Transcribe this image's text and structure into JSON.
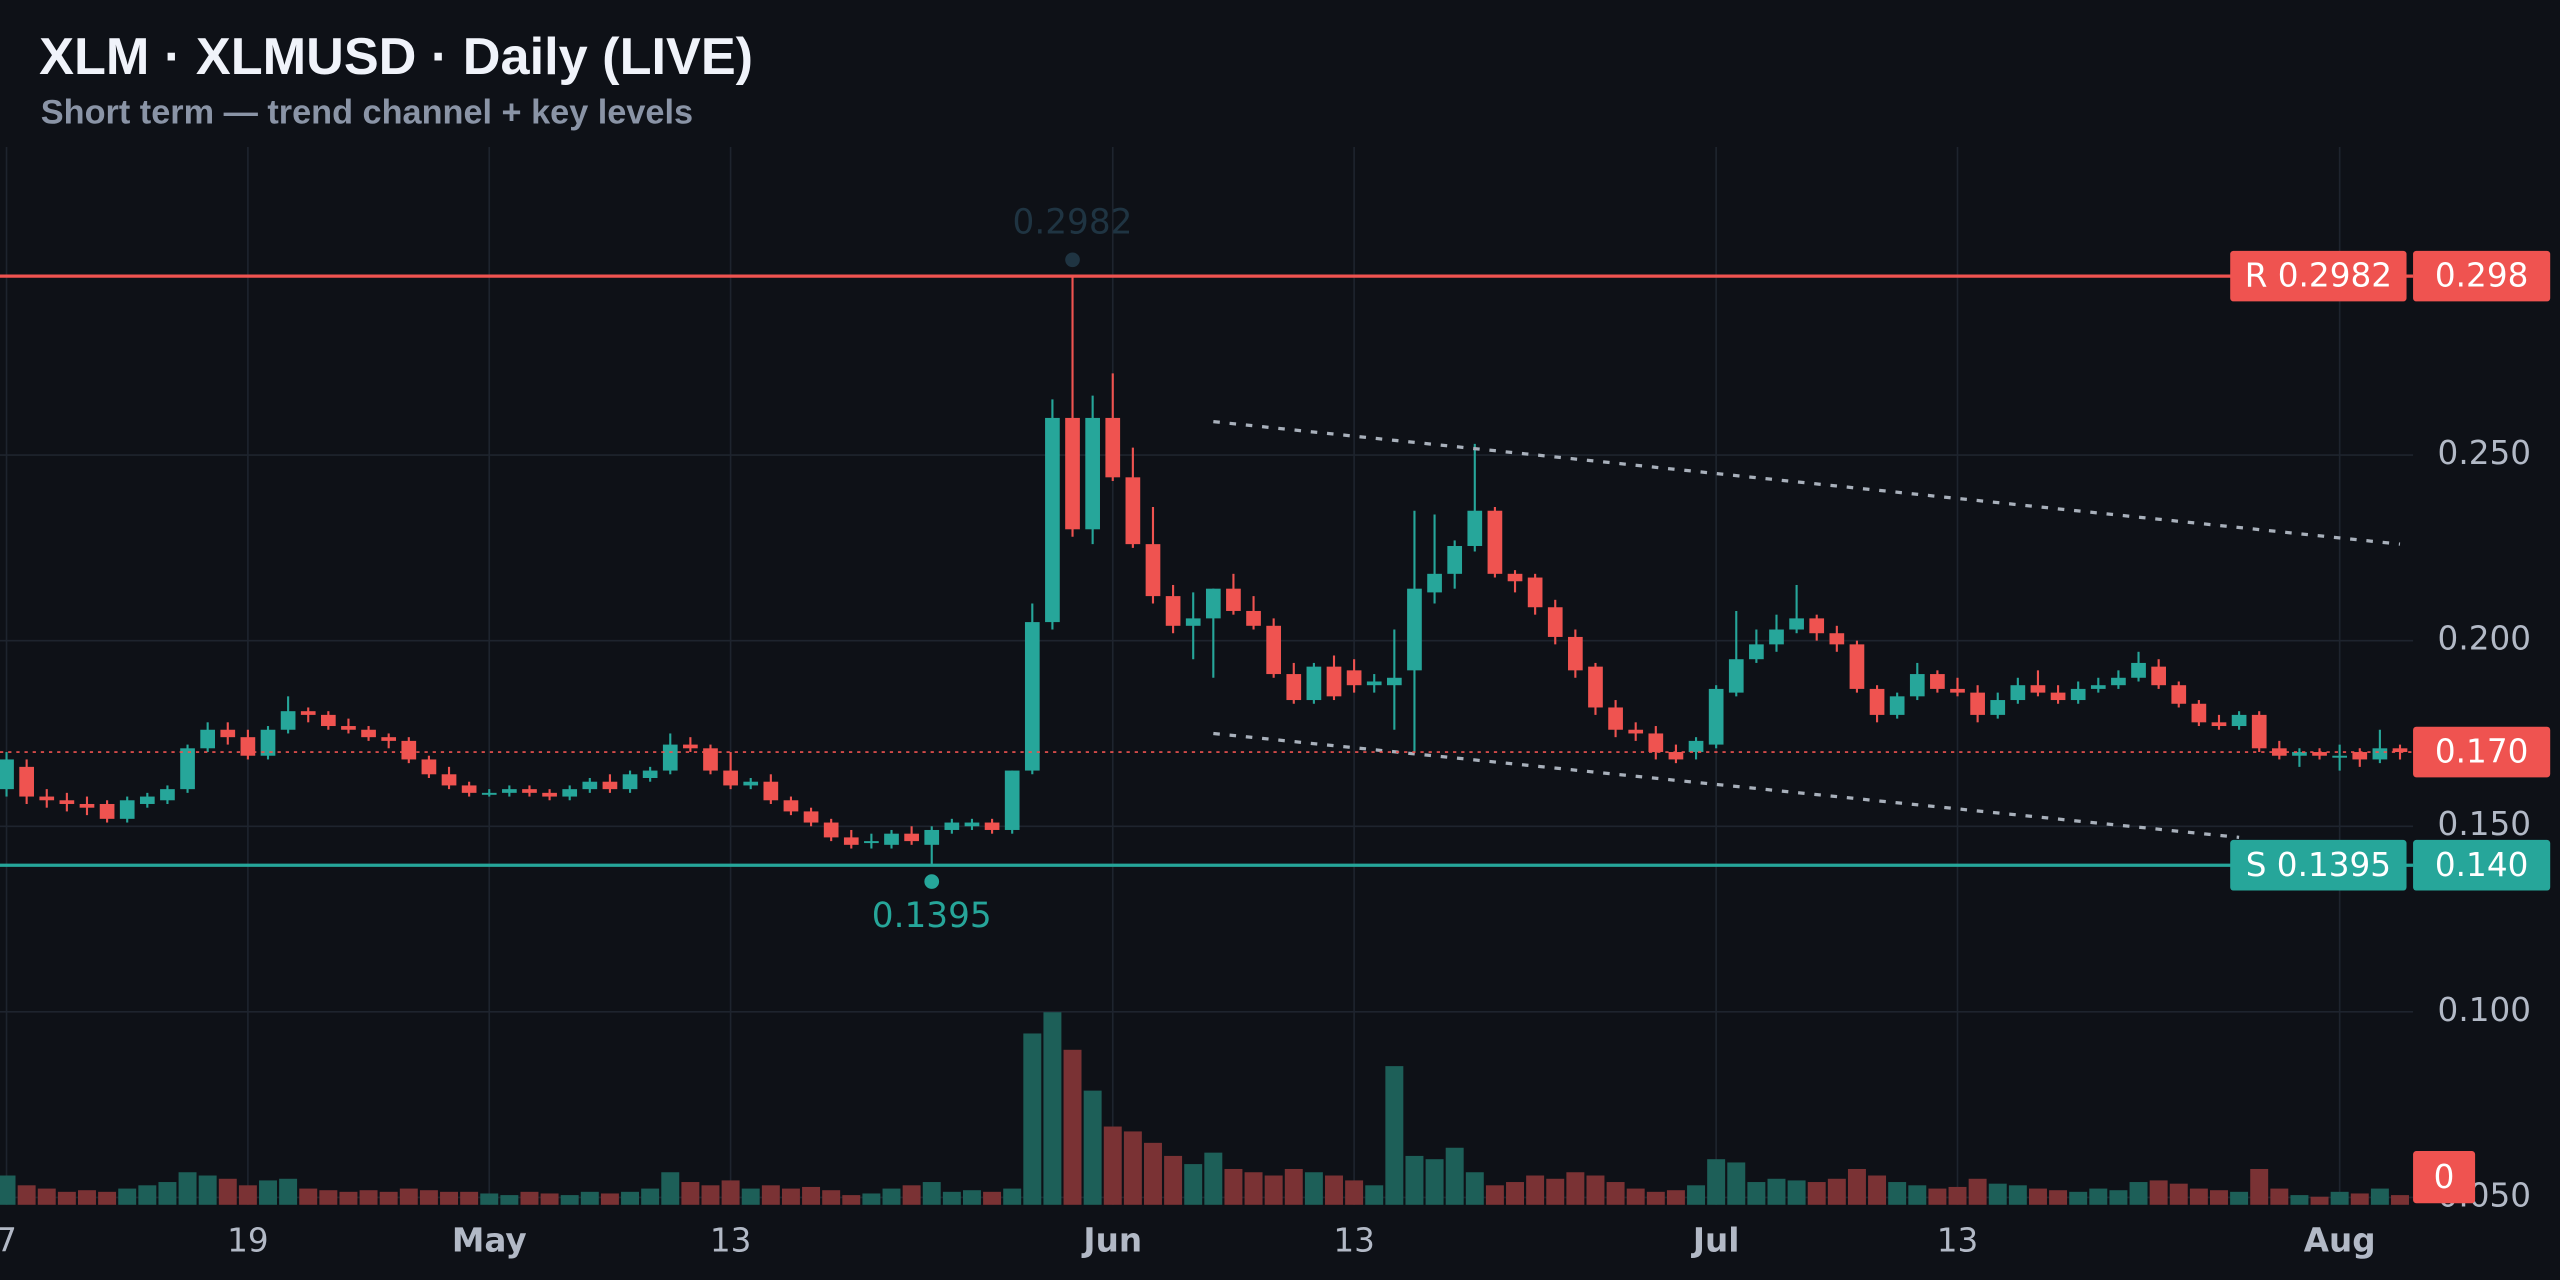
{
  "chart_data": {
    "type": "candlestick",
    "title": "XLM · XLMUSD · Daily (LIVE)",
    "subtitle": "Short term — trend channel + key levels",
    "up_color": "#26a69a",
    "down_color": "#ef5350",
    "x": [
      "04-07",
      "04-08",
      "04-09",
      "04-10",
      "04-11",
      "04-12",
      "04-13",
      "04-14",
      "04-15",
      "04-16",
      "04-17",
      "04-18",
      "04-19",
      "04-20",
      "04-21",
      "04-22",
      "04-23",
      "04-24",
      "04-25",
      "04-26",
      "04-27",
      "04-28",
      "04-29",
      "04-30",
      "05-01",
      "05-02",
      "05-03",
      "05-04",
      "05-05",
      "05-06",
      "05-07",
      "05-08",
      "05-09",
      "05-10",
      "05-11",
      "05-12",
      "05-13",
      "05-14",
      "05-15",
      "05-16",
      "05-17",
      "05-18",
      "05-19",
      "05-20",
      "05-21",
      "05-22",
      "05-23",
      "05-24",
      "05-25",
      "05-26",
      "05-27",
      "05-28",
      "05-29",
      "05-30",
      "05-31",
      "06-01",
      "06-02",
      "06-03",
      "06-04",
      "06-05",
      "06-06",
      "06-07",
      "06-08",
      "06-09",
      "06-10",
      "06-11",
      "06-12",
      "06-13",
      "06-14",
      "06-15",
      "06-16",
      "06-17",
      "06-18",
      "06-19",
      "06-20",
      "06-21",
      "06-22",
      "06-23",
      "06-24",
      "06-25",
      "06-26",
      "06-27",
      "06-28",
      "06-29",
      "06-30",
      "07-01",
      "07-02",
      "07-03",
      "07-04",
      "07-05",
      "07-06",
      "07-07",
      "07-08",
      "07-09",
      "07-10",
      "07-11",
      "07-12",
      "07-13",
      "07-14",
      "07-15",
      "07-16",
      "07-17",
      "07-18",
      "07-19",
      "07-20",
      "07-21",
      "07-22",
      "07-23",
      "07-24",
      "07-25",
      "07-26",
      "07-27",
      "07-28",
      "07-29",
      "07-30",
      "07-31",
      "08-01",
      "08-02",
      "08-03",
      "08-04"
    ],
    "open": [
      0.16,
      0.166,
      0.158,
      0.157,
      0.156,
      0.156,
      0.152,
      0.156,
      0.157,
      0.16,
      0.171,
      0.176,
      0.174,
      0.169,
      0.176,
      0.181,
      0.18,
      0.177,
      0.176,
      0.174,
      0.173,
      0.168,
      0.164,
      0.161,
      0.159,
      0.159,
      0.16,
      0.159,
      0.158,
      0.16,
      0.162,
      0.16,
      0.163,
      0.165,
      0.172,
      0.171,
      0.165,
      0.161,
      0.162,
      0.157,
      0.154,
      0.151,
      0.147,
      0.146,
      0.145,
      0.148,
      0.145,
      0.149,
      0.15,
      0.151,
      0.149,
      0.165,
      0.205,
      0.26,
      0.23,
      0.26,
      0.244,
      0.226,
      0.212,
      0.204,
      0.206,
      0.214,
      0.208,
      0.204,
      0.191,
      0.184,
      0.193,
      0.192,
      0.188,
      0.188,
      0.192,
      0.213,
      0.218,
      0.2255,
      0.235,
      0.218,
      0.217,
      0.209,
      0.201,
      0.193,
      0.182,
      0.176,
      0.175,
      0.17,
      0.17,
      0.172,
      0.186,
      0.195,
      0.199,
      0.203,
      0.206,
      0.202,
      0.199,
      0.187,
      0.18,
      0.185,
      0.191,
      0.187,
      0.186,
      0.18,
      0.184,
      0.188,
      0.186,
      0.184,
      0.187,
      0.188,
      0.19,
      0.193,
      0.188,
      0.183,
      0.178,
      0.177,
      0.18,
      0.171,
      0.169,
      0.17,
      0.169,
      0.17,
      0.168,
      0.171
    ],
    "high": [
      0.17,
      0.168,
      0.16,
      0.159,
      0.158,
      0.157,
      0.158,
      0.159,
      0.161,
      0.172,
      0.178,
      0.178,
      0.176,
      0.177,
      0.185,
      0.182,
      0.181,
      0.179,
      0.177,
      0.175,
      0.174,
      0.169,
      0.166,
      0.162,
      0.16,
      0.161,
      0.161,
      0.16,
      0.161,
      0.163,
      0.164,
      0.165,
      0.166,
      0.175,
      0.174,
      0.172,
      0.17,
      0.163,
      0.164,
      0.158,
      0.155,
      0.152,
      0.149,
      0.148,
      0.149,
      0.15,
      0.15,
      0.152,
      0.152,
      0.152,
      0.165,
      0.21,
      0.265,
      0.2982,
      0.266,
      0.272,
      0.252,
      0.236,
      0.215,
      0.213,
      0.214,
      0.218,
      0.212,
      0.206,
      0.194,
      0.194,
      0.196,
      0.195,
      0.191,
      0.203,
      0.235,
      0.234,
      0.227,
      0.253,
      0.236,
      0.219,
      0.218,
      0.211,
      0.203,
      0.194,
      0.184,
      0.178,
      0.177,
      0.172,
      0.174,
      0.188,
      0.208,
      0.203,
      0.207,
      0.215,
      0.207,
      0.204,
      0.2,
      0.188,
      0.186,
      0.194,
      0.192,
      0.19,
      0.188,
      0.186,
      0.19,
      0.192,
      0.188,
      0.189,
      0.19,
      0.192,
      0.197,
      0.195,
      0.189,
      0.184,
      0.18,
      0.181,
      0.181,
      0.173,
      0.171,
      0.171,
      0.172,
      0.171,
      0.176,
      0.172
    ],
    "low": [
      0.158,
      0.156,
      0.155,
      0.154,
      0.153,
      0.151,
      0.151,
      0.155,
      0.156,
      0.159,
      0.17,
      0.172,
      0.168,
      0.168,
      0.175,
      0.178,
      0.176,
      0.175,
      0.173,
      0.171,
      0.167,
      0.163,
      0.16,
      0.158,
      0.158,
      0.158,
      0.158,
      0.157,
      0.157,
      0.159,
      0.159,
      0.159,
      0.162,
      0.164,
      0.17,
      0.164,
      0.16,
      0.16,
      0.156,
      0.153,
      0.15,
      0.146,
      0.144,
      0.144,
      0.144,
      0.145,
      0.1395,
      0.148,
      0.149,
      0.148,
      0.148,
      0.164,
      0.203,
      0.228,
      0.226,
      0.243,
      0.225,
      0.21,
      0.202,
      0.195,
      0.19,
      0.207,
      0.203,
      0.19,
      0.183,
      0.183,
      0.184,
      0.186,
      0.186,
      0.176,
      0.17,
      0.21,
      0.214,
      0.224,
      0.217,
      0.213,
      0.207,
      0.199,
      0.19,
      0.18,
      0.174,
      0.173,
      0.168,
      0.167,
      0.168,
      0.171,
      0.185,
      0.194,
      0.197,
      0.202,
      0.2,
      0.197,
      0.186,
      0.178,
      0.179,
      0.184,
      0.186,
      0.185,
      0.178,
      0.179,
      0.183,
      0.185,
      0.183,
      0.183,
      0.186,
      0.187,
      0.189,
      0.187,
      0.182,
      0.177,
      0.176,
      0.176,
      0.17,
      0.168,
      0.166,
      0.168,
      0.165,
      0.166,
      0.167,
      0.168
    ],
    "close": [
      0.168,
      0.158,
      0.157,
      0.156,
      0.155,
      0.152,
      0.157,
      0.158,
      0.16,
      0.171,
      0.176,
      0.174,
      0.169,
      0.176,
      0.181,
      0.18,
      0.177,
      0.176,
      0.174,
      0.173,
      0.168,
      0.164,
      0.161,
      0.159,
      0.159,
      0.16,
      0.159,
      0.158,
      0.16,
      0.162,
      0.16,
      0.164,
      0.165,
      0.172,
      0.171,
      0.165,
      0.161,
      0.162,
      0.157,
      0.154,
      0.151,
      0.147,
      0.145,
      0.146,
      0.148,
      0.146,
      0.149,
      0.151,
      0.151,
      0.149,
      0.165,
      0.205,
      0.26,
      0.23,
      0.26,
      0.244,
      0.226,
      0.212,
      0.204,
      0.206,
      0.214,
      0.208,
      0.204,
      0.191,
      0.184,
      0.193,
      0.185,
      0.188,
      0.189,
      0.19,
      0.214,
      0.218,
      0.2255,
      0.235,
      0.218,
      0.216,
      0.209,
      0.201,
      0.192,
      0.182,
      0.176,
      0.175,
      0.17,
      0.168,
      0.173,
      0.187,
      0.195,
      0.199,
      0.203,
      0.206,
      0.202,
      0.199,
      0.187,
      0.18,
      0.185,
      0.191,
      0.187,
      0.186,
      0.18,
      0.184,
      0.188,
      0.186,
      0.184,
      0.187,
      0.188,
      0.19,
      0.194,
      0.188,
      0.183,
      0.178,
      0.177,
      0.18,
      0.171,
      0.169,
      0.17,
      0.169,
      0.169,
      0.168,
      0.171,
      0.17
    ],
    "volume": [
      18,
      12,
      10,
      8,
      9,
      8,
      10,
      12,
      14,
      20,
      18,
      16,
      12,
      15,
      16,
      10,
      9,
      8,
      9,
      8,
      10,
      9,
      8,
      8,
      7,
      6,
      8,
      7,
      6,
      8,
      7,
      8,
      10,
      20,
      14,
      12,
      15,
      10,
      12,
      10,
      11,
      9,
      6,
      7,
      10,
      12,
      14,
      8,
      9,
      8,
      10,
      105,
      118,
      95,
      70,
      48,
      45,
      38,
      30,
      25,
      32,
      22,
      20,
      18,
      22,
      20,
      18,
      15,
      12,
      85,
      30,
      28,
      35,
      20,
      12,
      14,
      18,
      16,
      20,
      18,
      14,
      10,
      8,
      9,
      12,
      28,
      26,
      14,
      16,
      15,
      14,
      16,
      22,
      18,
      14,
      12,
      10,
      11,
      16,
      13,
      12,
      10,
      9,
      8,
      10,
      9,
      14,
      15,
      13,
      10,
      9,
      8,
      22,
      10,
      6,
      5,
      8,
      7,
      10,
      6
    ],
    "volume_up_color": "#1d5f58",
    "volume_down_color": "#7a3234",
    "volume_label": "0",
    "ylim": [
      0.048,
      0.333
    ],
    "yticks": [
      {
        "value": 0.05,
        "label": "0.050"
      },
      {
        "value": 0.1,
        "label": "0.100"
      },
      {
        "value": 0.15,
        "label": "0.150"
      },
      {
        "value": 0.2,
        "label": "0.200"
      },
      {
        "value": 0.25,
        "label": "0.250"
      }
    ],
    "xticks": [
      {
        "value": "04-07",
        "label": "7"
      },
      {
        "value": "04-19",
        "label": "19"
      },
      {
        "value": "05-01",
        "label": "May"
      },
      {
        "value": "05-13",
        "label": "13"
      },
      {
        "value": "06-01",
        "label": "Jun"
      },
      {
        "value": "06-13",
        "label": "13"
      },
      {
        "value": "07-01",
        "label": "Jul"
      },
      {
        "value": "07-13",
        "label": "13"
      },
      {
        "value": "08-01",
        "label": "Aug"
      }
    ],
    "grid": true,
    "levels": [
      {
        "label": "R 0.2982",
        "value": 0.2982,
        "axis_label": "0.298",
        "color": "#ef5350"
      },
      {
        "label": "S 0.1395",
        "value": 0.1395,
        "axis_label": "0.140",
        "color": "#26a69a"
      }
    ],
    "last_price_label": "0.170",
    "annotations": [
      {
        "text": "0.2982",
        "x": "05-30",
        "y": 0.2982,
        "color": "#1f3442"
      },
      {
        "text": "0.1395",
        "x": "05-23",
        "y": 0.1395,
        "color": "#26a69a"
      }
    ],
    "channel": [
      {
        "x": [
          "06-06",
          "08-04"
        ],
        "y": [
          0.259,
          0.226
        ]
      },
      {
        "x": [
          "06-06",
          "07-27"
        ],
        "y": [
          0.175,
          0.147
        ]
      }
    ]
  }
}
